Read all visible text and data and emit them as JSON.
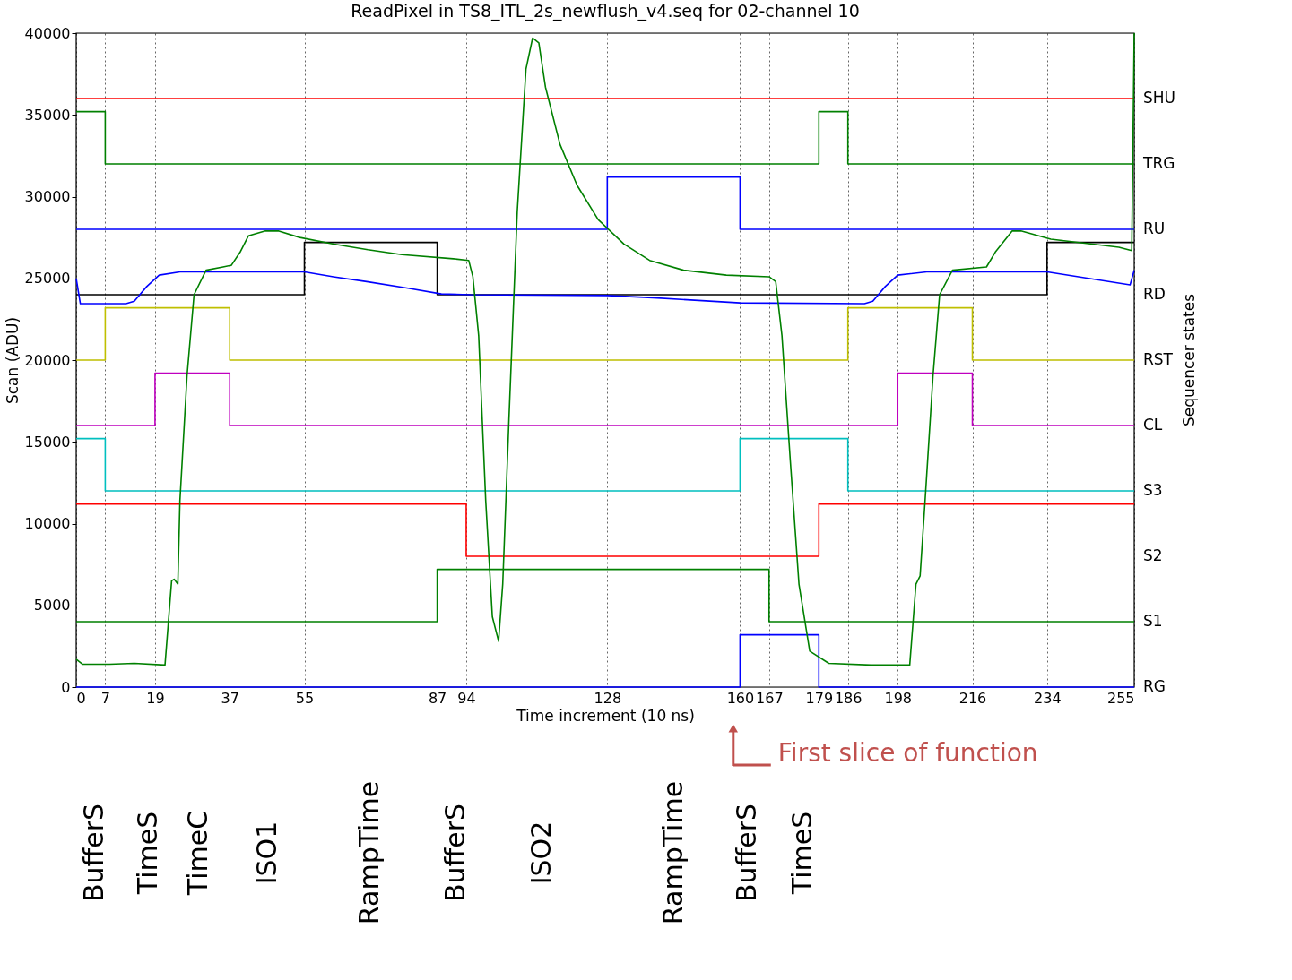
{
  "chart_data": {
    "type": "line",
    "title": "ReadPixel in TS8_ITL_2s_newflush_v4.seq for 02-channel 10",
    "xlabel": "Time increment (10 ns)",
    "ylabel": "Scan (ADU)",
    "y2label": "Sequencer states",
    "xlim": [
      0,
      255
    ],
    "xticks": [
      0,
      7,
      19,
      37,
      55,
      87,
      94,
      128,
      160,
      167,
      179,
      186,
      198,
      216,
      234,
      255
    ],
    "ylim": [
      0,
      40000
    ],
    "yticks": [
      0,
      5000,
      10000,
      15000,
      20000,
      25000,
      30000,
      35000,
      40000
    ],
    "grid": "x",
    "marker": "none",
    "line_style": "solid",
    "series": [
      {
        "type": "step",
        "name": "SHU",
        "color": "#ff0000",
        "x": [
          0,
          255
        ],
        "values": [
          36000,
          36000
        ]
      },
      {
        "type": "step",
        "name": "TRG",
        "color": "#008000",
        "x": [
          0,
          7,
          179,
          186,
          255
        ],
        "values": [
          35200,
          32000,
          35200,
          32000,
          32000
        ]
      },
      {
        "type": "step",
        "name": "RU",
        "color": "#0000ff",
        "x": [
          0,
          128,
          160,
          255
        ],
        "values": [
          28000,
          31200,
          28000,
          28000
        ]
      },
      {
        "type": "step",
        "name": "RD",
        "color": "#000000",
        "x": [
          0,
          55,
          87,
          234,
          255
        ],
        "values": [
          24000,
          27200,
          24000,
          27200,
          27200
        ]
      },
      {
        "type": "step",
        "name": "RST",
        "color": "#bfbf00",
        "x": [
          0,
          7,
          37,
          186,
          216,
          255
        ],
        "values": [
          20000,
          23200,
          20000,
          23200,
          20000,
          20000
        ]
      },
      {
        "type": "step",
        "name": "CL",
        "color": "#bf00bf",
        "x": [
          0,
          19,
          37,
          198,
          216,
          255
        ],
        "values": [
          16000,
          19200,
          16000,
          19200,
          16000,
          16000
        ]
      },
      {
        "type": "step",
        "name": "S3",
        "color": "#00bfbf",
        "x": [
          0,
          7,
          160,
          186,
          255
        ],
        "values": [
          15200,
          12000,
          15200,
          12000,
          12000
        ]
      },
      {
        "type": "step",
        "name": "S2",
        "color": "#ff0000",
        "x": [
          0,
          94,
          179,
          255
        ],
        "values": [
          11200,
          8000,
          11200,
          11200
        ]
      },
      {
        "type": "step",
        "name": "S1",
        "color": "#008000",
        "x": [
          0,
          87,
          167,
          255
        ],
        "values": [
          4000,
          7200,
          4000,
          4000
        ]
      },
      {
        "type": "step",
        "name": "RG",
        "color": "#0000ff",
        "x": [
          0,
          160,
          179,
          255
        ],
        "values": [
          0,
          3200,
          0,
          0
        ]
      },
      {
        "color": "#0000ff",
        "x": [
          0,
          1,
          12,
          14,
          17,
          20,
          25,
          55,
          62,
          70,
          80,
          88,
          95,
          128,
          140,
          160,
          190,
          192,
          195,
          198,
          205,
          234,
          254,
          255
        ],
        "values": [
          25000,
          23450,
          23450,
          23600,
          24500,
          25200,
          25400,
          25400,
          25100,
          24800,
          24400,
          24050,
          24000,
          23950,
          23800,
          23500,
          23450,
          23600,
          24500,
          25200,
          25400,
          25400,
          24600,
          25500
        ]
      },
      {
        "color": "#008000",
        "x": [
          0,
          1.5,
          8,
          14,
          21.4,
          23,
          23.6,
          24.5,
          25,
          26.7,
          28.4,
          31.3,
          35.4,
          37.4,
          39.5,
          41.5,
          45.6,
          48.7,
          53.9,
          62.1,
          70.3,
          78.5,
          90.9,
          94.6,
          95.6,
          97,
          98.7,
          100.3,
          101.8,
          102.8,
          104.3,
          106.3,
          108.4,
          110,
          111.5,
          113.1,
          116.6,
          120.7,
          125.8,
          132,
          138.2,
          146.4,
          156.7,
          167,
          168.6,
          170.1,
          172.1,
          174.2,
          176.8,
          181.4,
          191.6,
          200.9,
          202.4,
          203.4,
          204.6,
          206.5,
          208.1,
          211.2,
          219.4,
          221.5,
          225.6,
          227.7,
          234.9,
          251.3,
          254.4,
          255
        ],
        "values": [
          1700,
          1400,
          1400,
          1450,
          1350,
          6500,
          6600,
          6300,
          11400,
          19000,
          24000,
          25500,
          25700,
          25800,
          26600,
          27600,
          27900,
          27900,
          27500,
          27100,
          26750,
          26450,
          26200,
          26100,
          25100,
          21500,
          11400,
          4300,
          2800,
          6300,
          16400,
          29100,
          37800,
          39700,
          39400,
          36700,
          33200,
          30700,
          28600,
          27100,
          26100,
          25500,
          25200,
          25100,
          24800,
          21500,
          13900,
          6300,
          2200,
          1450,
          1350,
          1350,
          6300,
          6800,
          11400,
          19000,
          24000,
          25500,
          25700,
          26600,
          27900,
          27900,
          27400,
          26900,
          26700,
          40000
        ]
      }
    ],
    "annotations": [
      "First slice of function",
      "BufferS",
      "TimeS",
      "TimeC",
      "ISO1",
      "RampTime",
      "BufferS",
      "ISO2",
      "RampTime",
      "BufferS",
      "TimeS"
    ]
  }
}
